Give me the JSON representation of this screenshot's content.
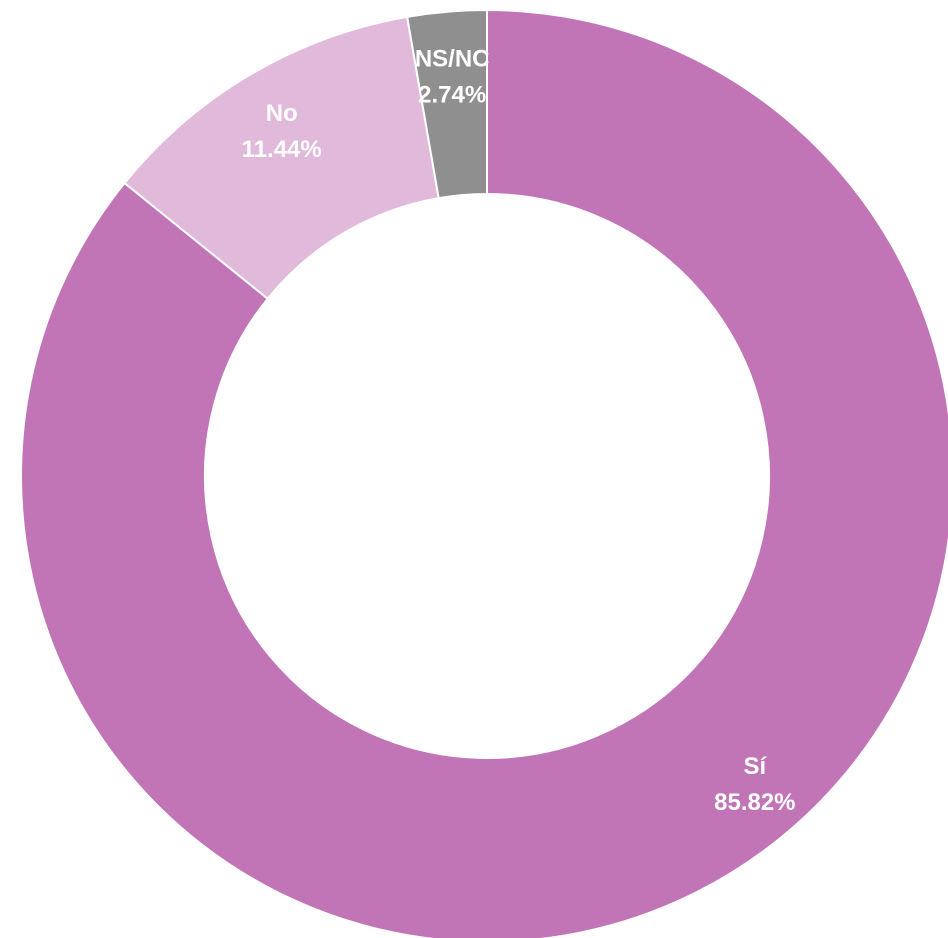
{
  "chart_data": {
    "type": "pie",
    "subtype": "donut",
    "legend": "none",
    "slices": [
      {
        "name": "Sí",
        "value": 85.82,
        "value_label": "85.82%",
        "color": "#C175B7"
      },
      {
        "name": "No",
        "value": 11.44,
        "value_label": "11.44%",
        "color": "#E0B9DB"
      },
      {
        "name": "NS/NC",
        "value": 2.74,
        "value_label": "2.74%",
        "color": "#8F8F8F"
      }
    ]
  }
}
